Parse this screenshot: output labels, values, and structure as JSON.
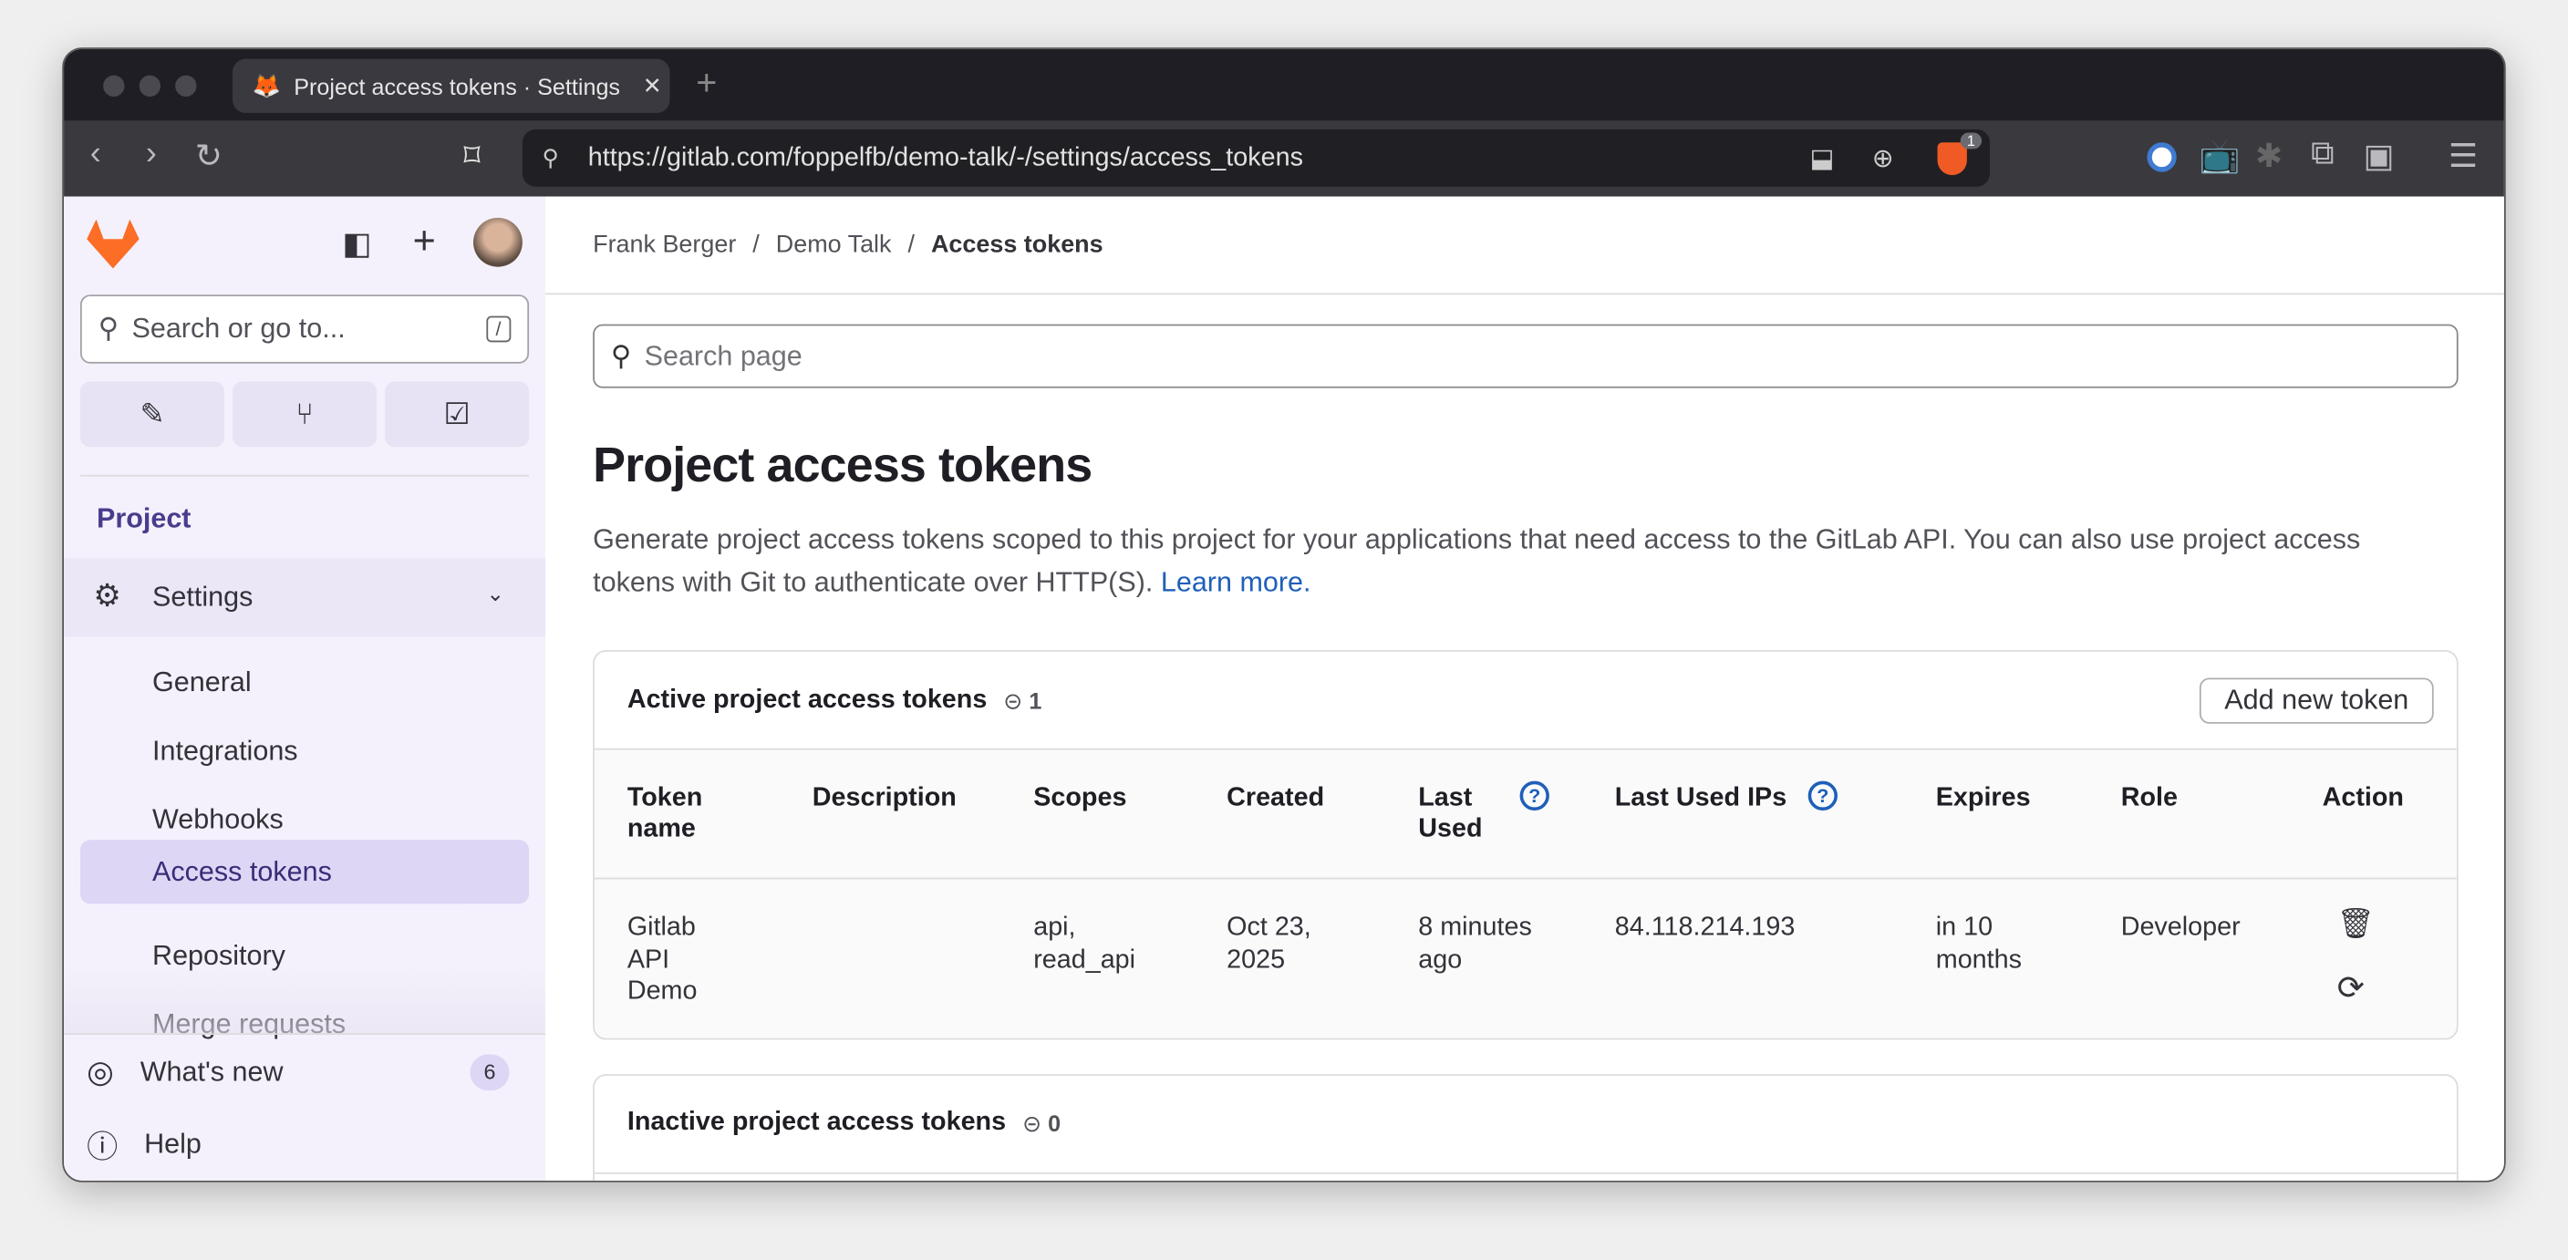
{
  "browser": {
    "tab_title": "Project access tokens · Settings",
    "url": "https://gitlab.com/foppelfb/demo-talk/-/settings/access_tokens",
    "shields_badge": "1"
  },
  "sidebar": {
    "search_placeholder": "Search or go to...",
    "search_shortcut": "/",
    "section": "Project",
    "settings_label": "Settings",
    "items": [
      {
        "label": "General"
      },
      {
        "label": "Integrations"
      },
      {
        "label": "Webhooks"
      },
      {
        "label": "Access tokens",
        "active": true
      },
      {
        "label": "Repository"
      },
      {
        "label": "Merge requests"
      }
    ],
    "whats_new": "What's new",
    "whats_new_count": "6",
    "help": "Help"
  },
  "breadcrumb": [
    "Frank Berger",
    "Demo Talk",
    "Access tokens"
  ],
  "search_page_placeholder": "Search page",
  "page": {
    "title": "Project access tokens",
    "description": "Generate project access tokens scoped to this project for your applications that need access to the GitLab API. You can also use project access tokens with Git to authenticate over HTTP(S).",
    "learn_more": "Learn more."
  },
  "active": {
    "title": "Active project access tokens",
    "count": "1",
    "add_button": "Add new token",
    "columns": [
      "Token name",
      "Description",
      "Scopes",
      "Created",
      "Last Used",
      "Last Used IPs",
      "Expires",
      "Role",
      "Action"
    ],
    "rows": [
      {
        "name": "Gitlab API Demo",
        "description": "",
        "scopes": "api, read_api",
        "created": "Oct 23, 2025",
        "last_used": "8 minutes ago",
        "ips": "84.118.214.193",
        "expires": "in 10 months",
        "role": "Developer"
      }
    ]
  },
  "inactive": {
    "title": "Inactive project access tokens",
    "count": "0"
  }
}
